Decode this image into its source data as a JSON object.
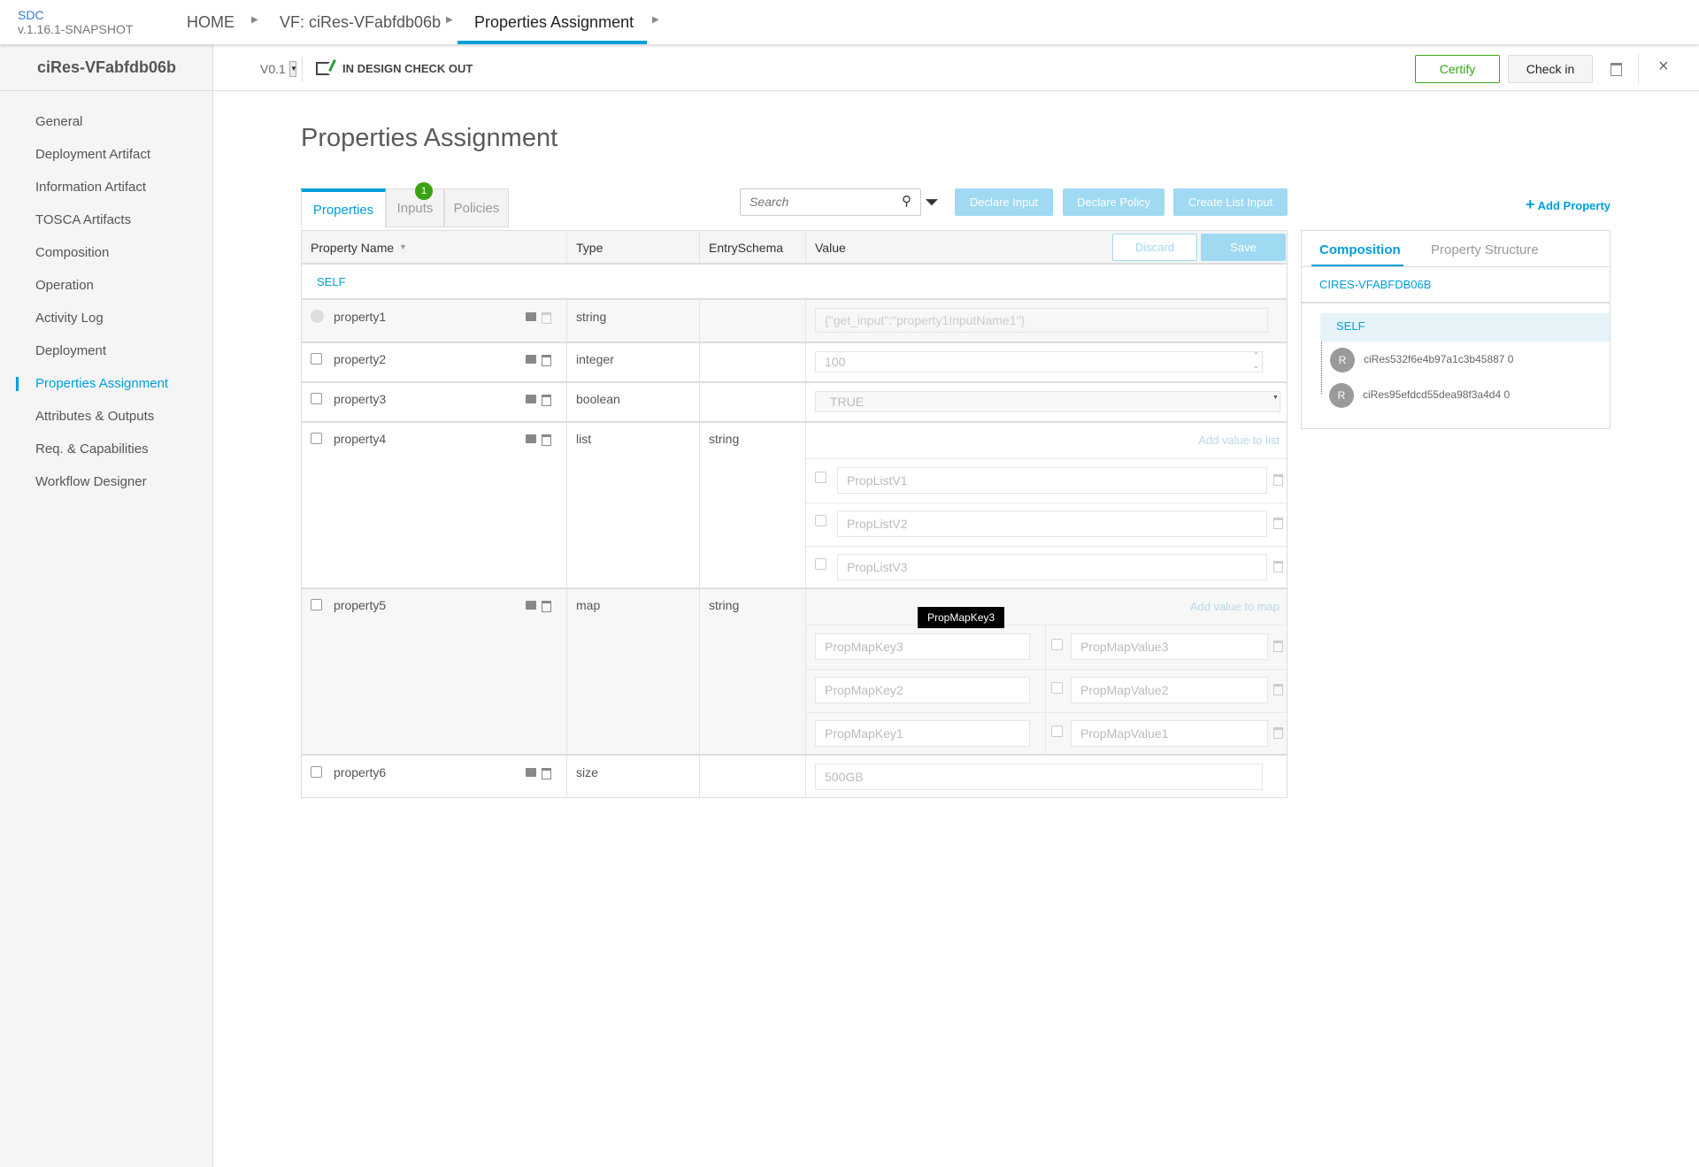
{
  "app": {
    "name": "SDC",
    "version": "v.1.16.1-SNAPSHOT"
  },
  "breadcrumb": [
    {
      "label": "HOME"
    },
    {
      "label": "VF: ciRes-VFabfdb06b"
    },
    {
      "label": "Properties Assignment"
    }
  ],
  "subbar": {
    "version": "V0.1",
    "status": "IN DESIGN CHECK OUT",
    "certify": "Certify",
    "checkin": "Check in"
  },
  "sidebar": {
    "title": "ciRes-VFabfdb06b",
    "items": [
      {
        "label": "General"
      },
      {
        "label": "Deployment Artifact"
      },
      {
        "label": "Information Artifact"
      },
      {
        "label": "TOSCA Artifacts"
      },
      {
        "label": "Composition"
      },
      {
        "label": "Operation"
      },
      {
        "label": "Activity Log"
      },
      {
        "label": "Deployment"
      },
      {
        "label": "Properties Assignment",
        "active": true
      },
      {
        "label": "Attributes & Outputs"
      },
      {
        "label": "Req. & Capabilities"
      },
      {
        "label": "Workflow Designer"
      }
    ]
  },
  "page": {
    "title": "Properties Assignment"
  },
  "tabs": [
    {
      "label": "Properties",
      "active": true
    },
    {
      "label": "Inputs",
      "badge": "1"
    },
    {
      "label": "Policies"
    }
  ],
  "toolbar": {
    "search_placeholder": "Search",
    "declare_input": "Declare Input",
    "declare_policy": "Declare Policy",
    "create_list_input": "Create List Input",
    "add_property": "Add Property"
  },
  "table": {
    "headers": {
      "name": "Property Name",
      "type": "Type",
      "entry": "EntrySchema",
      "value": "Value"
    },
    "discard": "Discard",
    "save": "Save",
    "group": "SELF",
    "rows": [
      {
        "name": "property1",
        "type": "string",
        "entry": "",
        "value": "{\"get_input\":\"property1InputName1\"}",
        "declared": true
      },
      {
        "name": "property2",
        "type": "integer",
        "entry": "",
        "value": "100"
      },
      {
        "name": "property3",
        "type": "boolean",
        "entry": "",
        "value": "TRUE"
      },
      {
        "name": "property4",
        "type": "list",
        "entry": "string",
        "add_label": "Add value to list",
        "items": [
          "PropListV1",
          "PropListV2",
          "PropListV3"
        ]
      },
      {
        "name": "property5",
        "type": "map",
        "entry": "string",
        "add_label": "Add value to map",
        "items": [
          {
            "key": "PropMapKey3",
            "value": "PropMapValue3"
          },
          {
            "key": "PropMapKey2",
            "value": "PropMapValue2"
          },
          {
            "key": "PropMapKey1",
            "value": "PropMapValue1"
          }
        ]
      },
      {
        "name": "property6",
        "type": "size",
        "entry": "",
        "value": "500GB"
      }
    ]
  },
  "tooltip": "PropMapKey3",
  "right_panel": {
    "tabs": [
      {
        "label": "Composition",
        "active": true
      },
      {
        "label": "Property Structure"
      }
    ],
    "root": "CIRES-VFABFDB06B",
    "self": "SELF",
    "instances": [
      {
        "avatar": "R",
        "name": "ciRes532f6e4b97a1c3b45887 0"
      },
      {
        "avatar": "R",
        "name": "ciRes95efdcd55dea98f3a4d4 0"
      }
    ]
  },
  "colors": {
    "accent": "#009fdb",
    "certify": "#3aa312"
  }
}
